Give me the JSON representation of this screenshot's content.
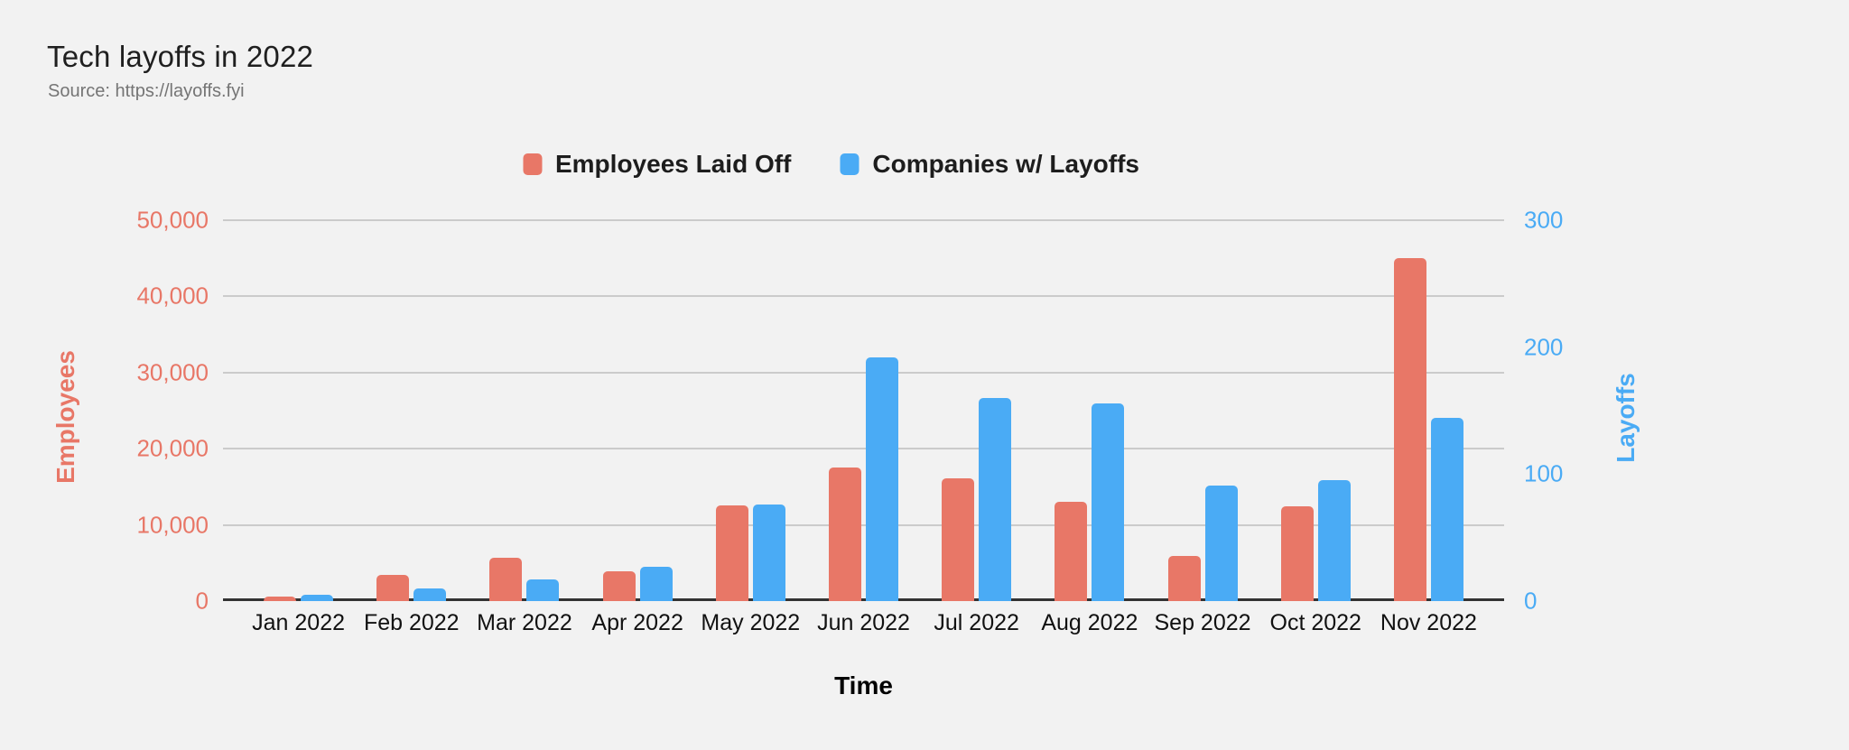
{
  "header": {
    "title": "Tech layoffs in 2022",
    "subtitle": "Source: https://layoffs.fyi"
  },
  "colors": {
    "background": "#f2f2f2",
    "employees_series": "#e87767",
    "companies_series": "#4aabf5",
    "gridline": "#cbcbcb",
    "axis_baseline": "#333333",
    "title_text": "#1f1f1f",
    "subtitle_text": "#757575",
    "xtick_text": "#111111",
    "legend_text": "#1d1d1d"
  },
  "chart_data": {
    "type": "bar",
    "title": "Tech layoffs in 2022",
    "subtitle": "Source: https://layoffs.fyi",
    "categories": [
      "Jan 2022",
      "Feb 2022",
      "Mar 2022",
      "Apr 2022",
      "May 2022",
      "Jun 2022",
      "Jul 2022",
      "Aug 2022",
      "Sep 2022",
      "Oct 2022",
      "Nov 2022"
    ],
    "series": [
      {
        "name": "Employees Laid Off",
        "axis": "left",
        "color": "#e87767",
        "values": [
          600,
          3450,
          5650,
          3900,
          12600,
          17500,
          16100,
          13000,
          5900,
          12500,
          45000
        ]
      },
      {
        "name": "Companies w/ Layoffs",
        "axis": "right",
        "color": "#4aabf5",
        "values": [
          5,
          10,
          17,
          27,
          76,
          192,
          160,
          156,
          91,
          95,
          144
        ]
      }
    ],
    "xlabel": "Time",
    "left_axis": {
      "label": "Employees",
      "min": 0,
      "max": 50000,
      "tick_values": [
        0,
        10000,
        20000,
        30000,
        40000,
        50000
      ],
      "tick_labels": [
        "0",
        "10,000",
        "20,000",
        "30,000",
        "40,000",
        "50,000"
      ]
    },
    "right_axis": {
      "label": "Layoffs",
      "min": 0,
      "max": 300,
      "tick_values": [
        0,
        100,
        200,
        300
      ],
      "tick_labels": [
        "0",
        "100",
        "200",
        "300"
      ]
    },
    "grid": true,
    "legend_position": "top"
  }
}
